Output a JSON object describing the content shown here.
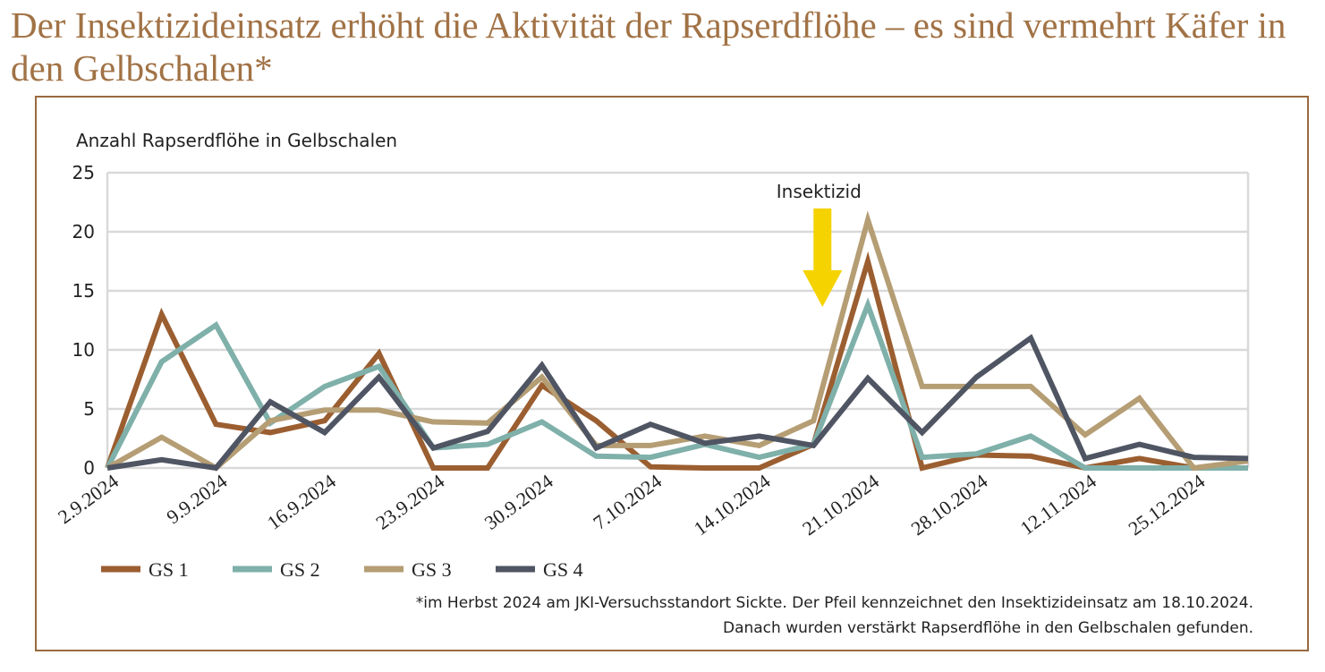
{
  "title": "Der Insektizideinsatz erhöht die Aktivität der Rapserdflöhe  – es sind vermehrt Käfer in den Gelbschalen*",
  "footnote": {
    "line1": "*im Herbst 2024 am JKI-Versuchsstandort Sickte. Der Pfeil kennzeichnet den Insektizideinsatz am 18.10.2024.",
    "line2": "Danach wurden verstärkt Rapserdflöhe in den Gelbschalen gefunden."
  },
  "colors": {
    "GS 1": "#9b5e30",
    "GS 2": "#7fb0aa",
    "GS 3": "#b59d74",
    "GS 4": "#4f5563",
    "arrow": "#f5d300",
    "frame": "#9a6a40",
    "title": "#a17245"
  },
  "chart_data": {
    "type": "line",
    "title": "",
    "xlabel": "",
    "ylabel": "Anzahl Rapserdflöhe in Gelbschalen",
    "ylim": [
      0,
      25
    ],
    "yticks": [
      0,
      5,
      10,
      15,
      20,
      25
    ],
    "grid": true,
    "legend_position": "bottom-left",
    "x_tick_labels": [
      "2.9.2024",
      "9.9.2024",
      "16.9.2024",
      "23.9.2024",
      "30.9.2024",
      "7.10.2024",
      "14.10.2024",
      "21.10.2024",
      "28.10.2024",
      "12.11.2024",
      "25.12.2024"
    ],
    "series": [
      {
        "name": "GS 1",
        "values": [
          0,
          13,
          3.7,
          3,
          4,
          9.7,
          0,
          0,
          7,
          4,
          0.1,
          0,
          0,
          2,
          17.5,
          0,
          1.1,
          1,
          0,
          0.8,
          0,
          0
        ]
      },
      {
        "name": "GS 2",
        "values": [
          0,
          9,
          12.1,
          3.8,
          6.9,
          8.6,
          1.7,
          2,
          3.9,
          1,
          0.9,
          2,
          0.9,
          2,
          13.8,
          0.9,
          1.2,
          2.7,
          0,
          0,
          0,
          0
        ]
      },
      {
        "name": "GS 3",
        "values": [
          0,
          2.6,
          0,
          4,
          4.9,
          4.9,
          3.9,
          3.8,
          7.7,
          1.9,
          1.9,
          2.7,
          1.9,
          4,
          21,
          6.9,
          6.9,
          6.9,
          2.8,
          5.9,
          0,
          0.6
        ]
      },
      {
        "name": "GS 4",
        "values": [
          0,
          0.7,
          0,
          5.6,
          3,
          7.7,
          1.7,
          3.1,
          8.7,
          1.7,
          3.7,
          2.1,
          2.7,
          1.9,
          7.6,
          3,
          7.7,
          11,
          0.8,
          2,
          0.9,
          0.8
        ]
      }
    ],
    "annotations": [
      {
        "text": "Insektizid",
        "x_index": 13,
        "marker": "down-arrow"
      }
    ]
  }
}
